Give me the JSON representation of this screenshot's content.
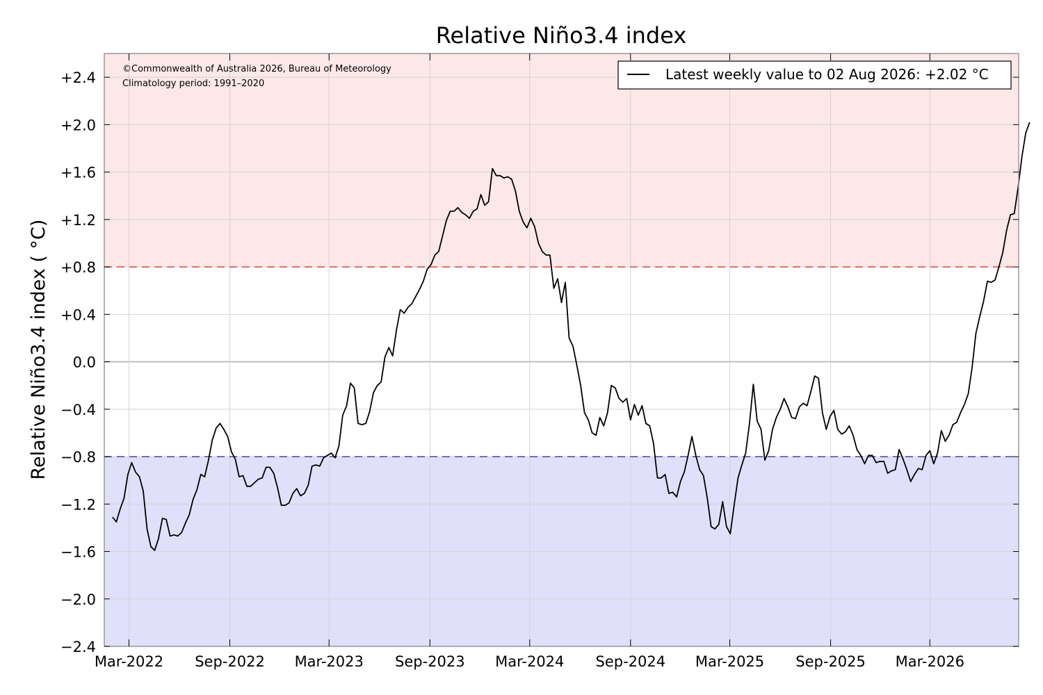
{
  "chart_data": {
    "type": "line",
    "title": "Relative Niño3.4 index",
    "ylabel": "Relative Niño3.4 index ( °C)",
    "xlabel": "",
    "ylim": [
      -2.4,
      2.6
    ],
    "xlim": [
      "2022-01-15",
      "2026-08-10"
    ],
    "y_ticks": [
      {
        "value": 2.4,
        "label": "+2.4"
      },
      {
        "value": 2.0,
        "label": "+2.0"
      },
      {
        "value": 1.6,
        "label": "+1.6"
      },
      {
        "value": 1.2,
        "label": "+1.2"
      },
      {
        "value": 0.8,
        "label": "+0.8"
      },
      {
        "value": 0.4,
        "label": "+0.4"
      },
      {
        "value": 0.0,
        "label": "0.0"
      },
      {
        "value": -0.4,
        "label": "−0.4"
      },
      {
        "value": -0.8,
        "label": "−0.8"
      },
      {
        "value": -1.2,
        "label": "−1.2"
      },
      {
        "value": -1.6,
        "label": "−1.6"
      },
      {
        "value": -2.0,
        "label": "−2.0"
      },
      {
        "value": -2.4,
        "label": "−2.4"
      }
    ],
    "x_ticks": [
      {
        "date": "2022-03-01",
        "label": "Mar-2022"
      },
      {
        "date": "2022-09-01",
        "label": "Sep-2022"
      },
      {
        "date": "2023-03-01",
        "label": "Mar-2023"
      },
      {
        "date": "2023-09-01",
        "label": "Sep-2023"
      },
      {
        "date": "2024-03-01",
        "label": "Mar-2024"
      },
      {
        "date": "2024-09-01",
        "label": "Sep-2024"
      },
      {
        "date": "2025-03-01",
        "label": "Mar-2025"
      },
      {
        "date": "2025-09-01",
        "label": "Sep-2025"
      },
      {
        "date": "2026-03-01",
        "label": "Mar-2026"
      }
    ],
    "thresholds": [
      {
        "value": 0.8,
        "color": "#e05050",
        "style": "dashed"
      },
      {
        "value": -0.8,
        "color": "#5050a0",
        "style": "dashed"
      }
    ],
    "bands": [
      {
        "from": 0.8,
        "to": 2.6,
        "color": "#fde8e8"
      },
      {
        "from": -2.4,
        "to": -0.8,
        "color": "#e0e0fb"
      }
    ],
    "grid": true,
    "legend_position": "top-right",
    "legend_label": "Latest weekly value to 02 Aug 2026: +2.02 °C",
    "annotations": [
      "©Commonwealth of Australia 2026, Bureau of Meteorology",
      "Climatology period: 1991–2020"
    ],
    "colors": {
      "line": "#000000",
      "warm_band": "#fde8e8",
      "cool_band": "#e0e0fb",
      "warm_line": "#e05050",
      "cool_line": "#5050a0"
    },
    "series": [
      {
        "start_date": "2022-01-30",
        "interval_days": 7,
        "values": [
          -1.31,
          -1.35,
          -1.24,
          -1.15,
          -0.95,
          -0.85,
          -0.93,
          -0.97,
          -1.09,
          -1.41,
          -1.56,
          -1.59,
          -1.49,
          -1.32,
          -1.33,
          -1.47,
          -1.46,
          -1.47,
          -1.44,
          -1.36,
          -1.29,
          -1.16,
          -1.08,
          -0.95,
          -0.97,
          -0.83,
          -0.66,
          -0.56,
          -0.52,
          -0.57,
          -0.63,
          -0.76,
          -0.82,
          -0.97,
          -0.96,
          -1.05,
          -1.05,
          -1.02,
          -0.99,
          -0.98,
          -0.89,
          -0.89,
          -0.94,
          -1.06,
          -1.21,
          -1.21,
          -1.19,
          -1.11,
          -1.07,
          -1.13,
          -1.11,
          -1.04,
          -0.88,
          -0.87,
          -0.88,
          -0.81,
          -0.79,
          -0.77,
          -0.81,
          -0.71,
          -0.45,
          -0.37,
          -0.18,
          -0.22,
          -0.52,
          -0.53,
          -0.52,
          -0.42,
          -0.26,
          -0.2,
          -0.17,
          0.04,
          0.12,
          0.05,
          0.27,
          0.44,
          0.41,
          0.46,
          0.49,
          0.55,
          0.61,
          0.68,
          0.78,
          0.82,
          0.9,
          0.93,
          1.06,
          1.19,
          1.27,
          1.27,
          1.3,
          1.26,
          1.24,
          1.21,
          1.27,
          1.29,
          1.41,
          1.32,
          1.35,
          1.63,
          1.57,
          1.57,
          1.55,
          1.56,
          1.54,
          1.44,
          1.27,
          1.18,
          1.13,
          1.21,
          1.14,
          1.0,
          0.93,
          0.9,
          0.9,
          0.62,
          0.7,
          0.5,
          0.67,
          0.2,
          0.13,
          -0.03,
          -0.2,
          -0.43,
          -0.49,
          -0.6,
          -0.62,
          -0.47,
          -0.54,
          -0.43,
          -0.2,
          -0.22,
          -0.31,
          -0.34,
          -0.31,
          -0.49,
          -0.36,
          -0.45,
          -0.37,
          -0.52,
          -0.54,
          -0.69,
          -0.98,
          -0.98,
          -0.95,
          -1.11,
          -1.1,
          -1.14,
          -1.01,
          -0.93,
          -0.79,
          -0.63,
          -0.79,
          -0.91,
          -0.96,
          -1.15,
          -1.39,
          -1.41,
          -1.37,
          -1.18,
          -1.39,
          -1.45,
          -1.21,
          -0.98,
          -0.87,
          -0.77,
          -0.52,
          -0.19,
          -0.5,
          -0.57,
          -0.83,
          -0.75,
          -0.57,
          -0.47,
          -0.4,
          -0.31,
          -0.38,
          -0.47,
          -0.48,
          -0.38,
          -0.35,
          -0.37,
          -0.25,
          -0.12,
          -0.14,
          -0.43,
          -0.57,
          -0.46,
          -0.41,
          -0.57,
          -0.61,
          -0.59,
          -0.54,
          -0.62,
          -0.74,
          -0.79,
          -0.86,
          -0.79,
          -0.79,
          -0.85,
          -0.84,
          -0.84,
          -0.94,
          -0.92,
          -0.91,
          -0.74,
          -0.82,
          -0.91,
          -1.01,
          -0.95,
          -0.9,
          -0.91,
          -0.79,
          -0.75,
          -0.86,
          -0.77,
          -0.58,
          -0.67,
          -0.62,
          -0.53,
          -0.51,
          -0.43,
          -0.36,
          -0.27,
          -0.05,
          0.24,
          0.38,
          0.51,
          0.68,
          0.67,
          0.69,
          0.8,
          0.92,
          1.11,
          1.24,
          1.25,
          1.47,
          1.73,
          1.93,
          2.02
        ]
      }
    ]
  }
}
